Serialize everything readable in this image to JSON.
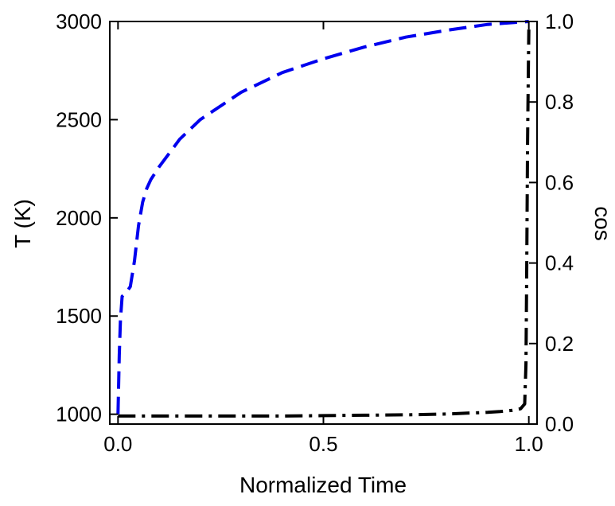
{
  "chart_data": {
    "type": "line",
    "title": "",
    "xlabel": "Normalized Time",
    "ylabel_left": "T (K)",
    "ylabel_right": "cos",
    "xlim": [
      -0.02,
      1.02
    ],
    "ylim_left": [
      950,
      3000
    ],
    "ylim_right": [
      0.0,
      1.0
    ],
    "x_ticks": [
      "0.0",
      "0.5",
      "1.0"
    ],
    "x_tick_values": [
      0.0,
      0.5,
      1.0
    ],
    "y_left_ticks": [
      "1000",
      "1500",
      "2000",
      "2500",
      "3000"
    ],
    "y_left_tick_values": [
      1000,
      1500,
      2000,
      2500,
      3000
    ],
    "y_right_ticks": [
      "0.0",
      "0.2",
      "0.4",
      "0.6",
      "0.8",
      "1.0"
    ],
    "y_right_tick_values": [
      0.0,
      0.2,
      0.4,
      0.6,
      0.8,
      1.0
    ],
    "grid": false,
    "legend": false,
    "series": [
      {
        "axis": "left",
        "style": "dashed",
        "color": "#0000ee",
        "x": [
          0.0,
          0.003,
          0.006,
          0.01,
          0.02,
          0.03,
          0.04,
          0.05,
          0.06,
          0.07,
          0.08,
          0.1,
          0.15,
          0.2,
          0.3,
          0.4,
          0.5,
          0.6,
          0.7,
          0.8,
          0.9,
          1.0
        ],
        "y": [
          1000,
          1300,
          1480,
          1600,
          1620,
          1650,
          1780,
          1960,
          2080,
          2150,
          2195,
          2260,
          2400,
          2500,
          2640,
          2740,
          2810,
          2870,
          2920,
          2955,
          2985,
          3000
        ]
      },
      {
        "axis": "right",
        "style": "dash-dot",
        "color": "#000000",
        "x": [
          0.0,
          0.1,
          0.2,
          0.3,
          0.4,
          0.5,
          0.6,
          0.7,
          0.8,
          0.85,
          0.9,
          0.93,
          0.96,
          0.98,
          0.99,
          0.993,
          0.995,
          0.997,
          0.999,
          1.0
        ],
        "y": [
          0.02,
          0.02,
          0.02,
          0.02,
          0.02,
          0.021,
          0.022,
          0.023,
          0.025,
          0.027,
          0.029,
          0.031,
          0.034,
          0.038,
          0.05,
          0.15,
          0.4,
          0.7,
          0.9,
          0.98
        ]
      }
    ]
  }
}
